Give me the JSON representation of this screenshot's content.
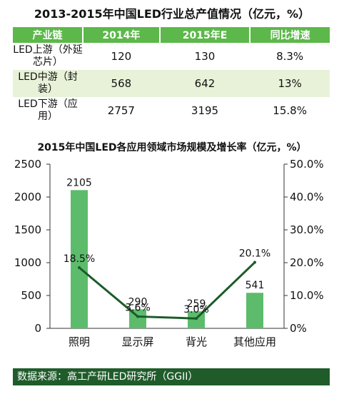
{
  "table_title": "2013-2015年中国LED行业总产值情况（亿元，%）",
  "table": {
    "headers": [
      "产业链",
      "2014年",
      "2015年E",
      "同比增速"
    ],
    "rows": [
      {
        "label": "LED上游（外延芯片）",
        "v2014": "120",
        "v2015": "130",
        "growth": "8.3%"
      },
      {
        "label": "LED中游（封装）",
        "v2014": "568",
        "v2015": "642",
        "growth": "13%"
      },
      {
        "label": "LED下游（应用）",
        "v2014": "2757",
        "v2015": "3195",
        "growth": "15.8%"
      }
    ]
  },
  "chart_data": {
    "type": "bar",
    "title": "2015年中国LED各应用领域市场规模及增长率（亿元，%）",
    "categories": [
      "照明",
      "显示屏",
      "背光",
      "其他应用"
    ],
    "series": [
      {
        "values": [
          2105,
          290,
          259,
          541
        ],
        "labels": [
          "2105",
          "290",
          "259",
          "541"
        ],
        "kind": "bar",
        "axis": "left"
      },
      {
        "values": [
          18.5,
          3.6,
          3.0,
          20.1
        ],
        "labels": [
          "18.5%",
          "3.6%",
          "3.0%",
          "20.1%"
        ],
        "kind": "line",
        "axis": "right"
      }
    ],
    "ylim": [
      0,
      2500
    ],
    "yticks": [
      "0",
      "500",
      "1000",
      "1500",
      "2000",
      "2500"
    ],
    "y2lim": [
      0,
      50
    ],
    "y2ticks": [
      "0%",
      "10.0%",
      "20.0%",
      "30.0%",
      "40.0%",
      "50.0%"
    ],
    "colors": {
      "bar": "#5cbc6c",
      "line": "#1a5c2a"
    }
  },
  "footer": "数据来源：高工产研LED研究所（GGII）"
}
